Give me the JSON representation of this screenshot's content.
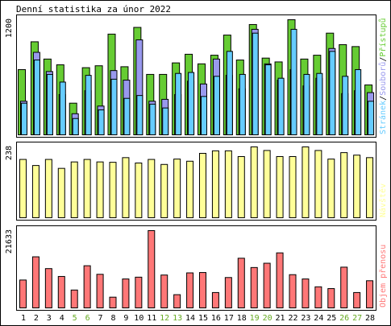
{
  "title": "Denní statistika za únor 2022",
  "colors": {
    "background": "#ffffff",
    "border": "#000000",
    "pages": "#66cc33",
    "files": "#9999ee",
    "hits": "#66ccff",
    "visits": "#ffff99",
    "traffic": "#ff7777",
    "weekend_label": "#66aa22",
    "weekday_label": "#000000"
  },
  "chart_data": [
    {
      "type": "bar",
      "name": "hits-files-pages",
      "ymax_label": "1200",
      "legend": {
        "text": "Stránek / Souborů / Přístupů",
        "parts": [
          "Stránek",
          "/",
          "Souborů",
          "/",
          "Přístupů"
        ]
      },
      "series": [
        {
          "name": "Přístupů",
          "color": "#66cc33",
          "values": [
            680,
            970,
            790,
            730,
            330,
            700,
            720,
            1050,
            710,
            1120,
            630,
            630,
            750,
            840,
            740,
            830,
            1040,
            780,
            1150,
            800,
            760,
            1200,
            790,
            830,
            1060,
            940,
            920,
            520
          ]
        },
        {
          "name": "Souborů",
          "color": "#9999ee",
          "values": [
            350,
            860,
            660,
            420,
            220,
            460,
            300,
            670,
            570,
            990,
            350,
            370,
            420,
            560,
            530,
            790,
            620,
            480,
            1100,
            740,
            570,
            680,
            510,
            590,
            900,
            430,
            460,
            440
          ]
        },
        {
          "name": "Stránek",
          "color": "#66ccff",
          "values": [
            330,
            780,
            630,
            550,
            170,
            620,
            260,
            580,
            380,
            410,
            320,
            280,
            640,
            650,
            400,
            610,
            870,
            630,
            1060,
            730,
            590,
            1100,
            630,
            640,
            870,
            610,
            680,
            350
          ]
        }
      ]
    },
    {
      "type": "bar",
      "name": "visits",
      "ymax_label": "238",
      "legend": {
        "text": "Návštěv"
      },
      "series": [
        {
          "name": "Návštěv",
          "color": "#ffff99",
          "values": [
            163,
            146,
            163,
            138,
            156,
            163,
            156,
            155,
            168,
            153,
            163,
            149,
            164,
            158,
            180,
            187,
            187,
            171,
            198,
            188,
            171,
            171,
            198,
            188,
            164,
            182,
            175,
            168
          ]
        }
      ]
    },
    {
      "type": "bar",
      "name": "traffic",
      "ymax_label": "21633",
      "legend": {
        "text": "Objem přenosu"
      },
      "series": [
        {
          "name": "Objem přenosu",
          "color": "#ff7777",
          "values": [
            7800,
            14300,
            11000,
            8800,
            5000,
            11800,
            9400,
            3000,
            8100,
            8600,
            21633,
            9200,
            3700,
            9800,
            9900,
            4300,
            8500,
            13900,
            11300,
            12500,
            15400,
            9300,
            8100,
            5900,
            5400,
            11400,
            4300,
            7600
          ]
        }
      ]
    }
  ],
  "x_labels": [
    "1",
    "2",
    "3",
    "4",
    "5",
    "6",
    "7",
    "8",
    "9",
    "10",
    "11",
    "12",
    "13",
    "14",
    "15",
    "16",
    "17",
    "18",
    "19",
    "20",
    "21",
    "22",
    "23",
    "24",
    "25",
    "26",
    "27",
    "28"
  ],
  "weekend_days": [
    "5",
    "6",
    "12",
    "13",
    "19",
    "20",
    "26",
    "27"
  ]
}
